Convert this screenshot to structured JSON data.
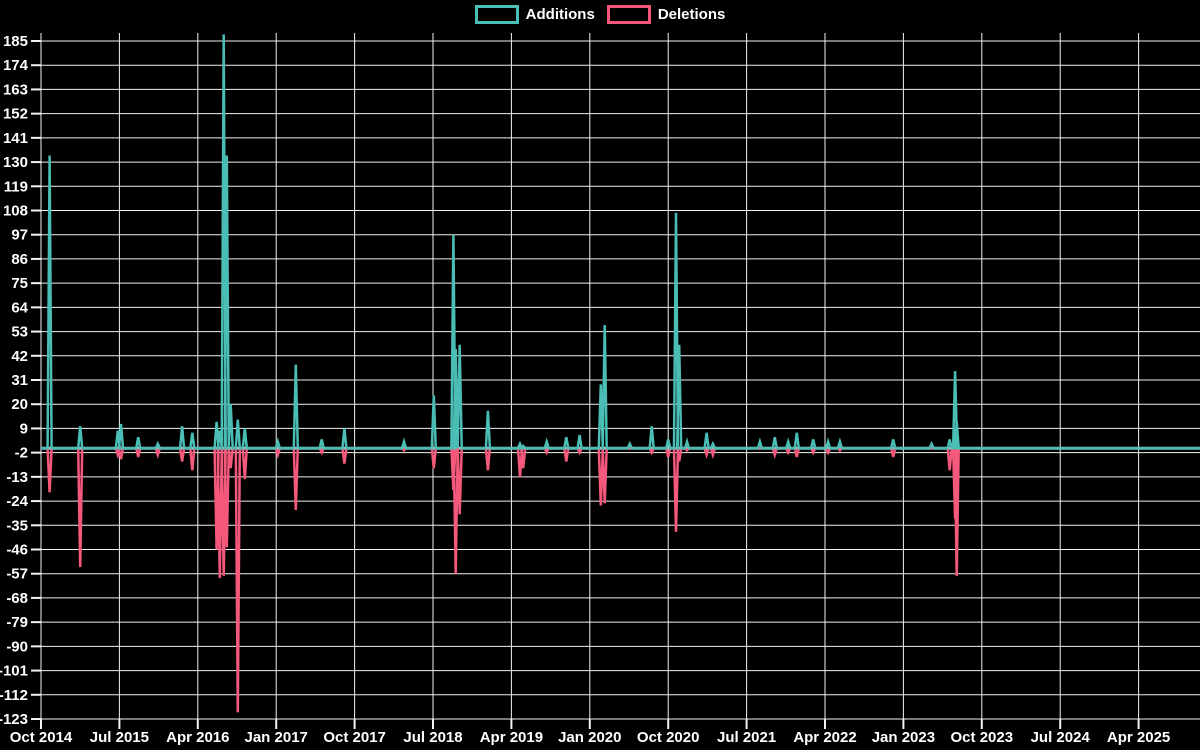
{
  "chart_data": {
    "type": "line",
    "title": "",
    "description": "Weekly code additions and deletions spike chart on black background",
    "legend_position": "top-center",
    "grid": true,
    "background": "#000000",
    "grid_color": "#f2f2f2",
    "text_color": "#ffffff",
    "baseline_color": "#a9c6ca",
    "baseline_value": 0,
    "ylim": [
      -123,
      185
    ],
    "ytick_step": 11,
    "yticks": [
      185,
      174,
      163,
      152,
      141,
      130,
      119,
      108,
      97,
      86,
      75,
      64,
      53,
      42,
      31,
      20,
      9,
      -2,
      -13,
      -24,
      -35,
      -46,
      -57,
      -68,
      -79,
      -90,
      -101,
      -112,
      -123
    ],
    "xticks": [
      "Oct 2014",
      "Jul 2015",
      "Apr 2016",
      "Jan 2017",
      "Oct 2017",
      "Jul 2018",
      "Apr 2019",
      "Jan 2020",
      "Oct 2020",
      "Jul 2021",
      "Apr 2022",
      "Jan 2023",
      "Oct 2023",
      "Jul 2024",
      "Apr 2025"
    ],
    "x_unit": "gridline index (0 = Oct 2014 gridline, 1 unit = 9 months)",
    "series": [
      {
        "name": "Additions",
        "color": "#4abdb5"
      },
      {
        "name": "Deletions",
        "color": "#f4587a"
      }
    ],
    "spikes": [
      {
        "t": 0.11,
        "additions": 133,
        "deletions": -20
      },
      {
        "t": 0.5,
        "additions": 10,
        "deletions": -54
      },
      {
        "t": 0.98,
        "additions": 8,
        "deletions": -3
      },
      {
        "t": 1.02,
        "additions": 11,
        "deletions": -5
      },
      {
        "t": 1.24,
        "additions": 5,
        "deletions": -4
      },
      {
        "t": 1.49,
        "additions": 2,
        "deletions": -3
      },
      {
        "t": 1.8,
        "additions": 10,
        "deletions": -6
      },
      {
        "t": 1.93,
        "additions": 7,
        "deletions": -10
      },
      {
        "t": 2.24,
        "additions": 12,
        "deletions": -46
      },
      {
        "t": 2.28,
        "additions": 8,
        "deletions": -59
      },
      {
        "t": 2.33,
        "additions": 188,
        "deletions": -58
      },
      {
        "t": 2.37,
        "additions": 133,
        "deletions": -45
      },
      {
        "t": 2.42,
        "additions": 20,
        "deletions": -9
      },
      {
        "t": 2.51,
        "additions": 13,
        "deletions": -120
      },
      {
        "t": 2.6,
        "additions": 9,
        "deletions": -14
      },
      {
        "t": 3.02,
        "additions": 3,
        "deletions": -3
      },
      {
        "t": 3.25,
        "additions": 38,
        "deletions": -28
      },
      {
        "t": 3.58,
        "additions": 4,
        "deletions": -2
      },
      {
        "t": 3.87,
        "additions": 9,
        "deletions": -7
      },
      {
        "t": 4.63,
        "additions": 3,
        "deletions": -1
      },
      {
        "t": 5.01,
        "additions": 24,
        "deletions": -9
      },
      {
        "t": 5.26,
        "additions": 97,
        "deletions": -19
      },
      {
        "t": 5.29,
        "additions": 45,
        "deletions": -57
      },
      {
        "t": 5.34,
        "additions": 47,
        "deletions": -30
      },
      {
        "t": 5.7,
        "additions": 17,
        "deletions": -10
      },
      {
        "t": 6.11,
        "additions": 2,
        "deletions": -13
      },
      {
        "t": 6.15,
        "additions": 1,
        "deletions": -9
      },
      {
        "t": 6.45,
        "additions": 3,
        "deletions": -2
      },
      {
        "t": 6.7,
        "additions": 5,
        "deletions": -6
      },
      {
        "t": 6.87,
        "additions": 6,
        "deletions": -2
      },
      {
        "t": 7.14,
        "additions": 29,
        "deletions": -26
      },
      {
        "t": 7.19,
        "additions": 56,
        "deletions": -25
      },
      {
        "t": 7.51,
        "additions": 2,
        "deletions": 0
      },
      {
        "t": 7.79,
        "additions": 10,
        "deletions": -2
      },
      {
        "t": 8.0,
        "additions": 4,
        "deletions": -4
      },
      {
        "t": 8.1,
        "additions": 107,
        "deletions": -38
      },
      {
        "t": 8.14,
        "additions": 47,
        "deletions": -6
      },
      {
        "t": 8.24,
        "additions": 3,
        "deletions": -1
      },
      {
        "t": 8.49,
        "additions": 7,
        "deletions": -3
      },
      {
        "t": 8.57,
        "additions": 2,
        "deletions": -3
      },
      {
        "t": 9.17,
        "additions": 3,
        "deletions": 0
      },
      {
        "t": 9.36,
        "additions": 5,
        "deletions": -3
      },
      {
        "t": 9.53,
        "additions": 3,
        "deletions": -2
      },
      {
        "t": 9.64,
        "additions": 7,
        "deletions": -4
      },
      {
        "t": 9.85,
        "additions": 4,
        "deletions": -2
      },
      {
        "t": 10.04,
        "additions": 3,
        "deletions": -2
      },
      {
        "t": 10.19,
        "additions": 3,
        "deletions": -1
      },
      {
        "t": 10.87,
        "additions": 4,
        "deletions": -4
      },
      {
        "t": 11.36,
        "additions": 2,
        "deletions": 0
      },
      {
        "t": 11.59,
        "additions": 4,
        "deletions": -10
      },
      {
        "t": 11.66,
        "additions": 35,
        "deletions": -32
      },
      {
        "t": 11.68,
        "additions": 12,
        "deletions": -58
      }
    ]
  }
}
